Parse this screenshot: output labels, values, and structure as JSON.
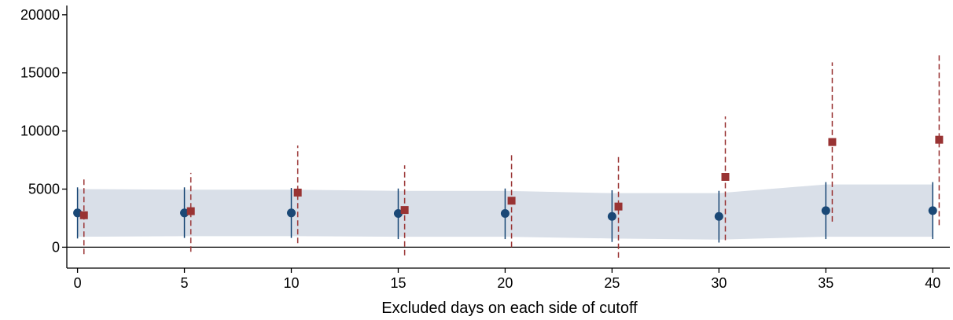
{
  "chart_data": {
    "type": "scatter",
    "title": "",
    "xlabel": "Excluded days on each side of cutoff",
    "ylabel": "",
    "xlim": [
      -0.5,
      40.8
    ],
    "ylim": [
      -1800,
      20800
    ],
    "x_ticks": [
      0,
      5,
      10,
      15,
      20,
      25,
      30,
      35,
      40
    ],
    "x_tick_labels": [
      "0",
      "5",
      "10",
      "15",
      "20",
      "25",
      "30",
      "35",
      "40"
    ],
    "y_ticks": [
      0,
      5000,
      10000,
      15000,
      20000
    ],
    "y_tick_labels": [
      "0",
      "5000",
      "10000",
      "15000",
      "20000"
    ],
    "grid": false,
    "reference_line_y": 0,
    "colors": {
      "band": "#d9dfe8",
      "circle_series": "#1a4876",
      "square_series": "#993333",
      "axis": "#000000"
    },
    "band": {
      "x": [
        0,
        5,
        10,
        15,
        20,
        25,
        30,
        35,
        40
      ],
      "lower": [
        900,
        950,
        950,
        900,
        900,
        750,
        650,
        900,
        900
      ],
      "upper": [
        5000,
        4950,
        4950,
        4850,
        4850,
        4650,
        4650,
        5400,
        5400
      ]
    },
    "series": [
      {
        "marker": "circle",
        "x": [
          0,
          5,
          10,
          15,
          20,
          25,
          30,
          35,
          40
        ],
        "values": [
          2950,
          2950,
          2950,
          2900,
          2900,
          2650,
          2650,
          3150,
          3150
        ],
        "ci_low": [
          750,
          800,
          800,
          700,
          700,
          450,
          400,
          700,
          700
        ],
        "ci_high": [
          5150,
          5150,
          5100,
          5050,
          5050,
          4900,
          4850,
          5600,
          5600
        ]
      },
      {
        "marker": "square",
        "x": [
          0.3,
          5.3,
          10.3,
          15.3,
          20.3,
          25.3,
          30.3,
          35.3,
          40.3
        ],
        "values": [
          2750,
          3100,
          4700,
          3200,
          4000,
          3500,
          6050,
          9050,
          9250
        ],
        "ci_low": [
          -600,
          -400,
          350,
          -700,
          0,
          -900,
          600,
          2200,
          1900
        ],
        "ci_high": [
          6100,
          6400,
          8750,
          7050,
          8150,
          7850,
          11250,
          15900,
          16600
        ]
      }
    ]
  }
}
